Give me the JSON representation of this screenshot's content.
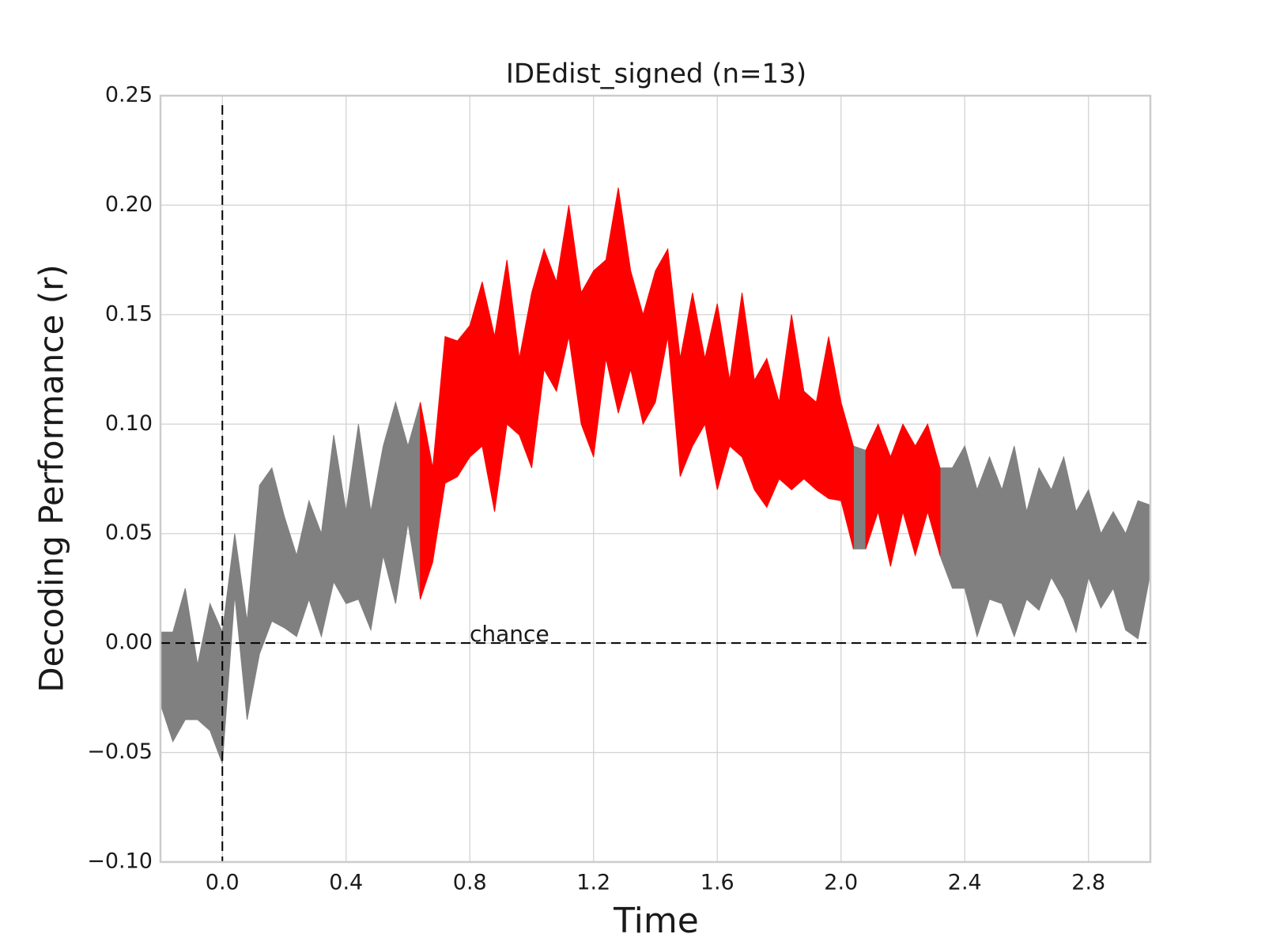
{
  "chart_data": {
    "type": "band",
    "title": "IDEdist_signed (n=13)",
    "xlabel": "Time",
    "ylabel": "Decoding Performance (r)",
    "annotation": "chance",
    "hlines": [
      0
    ],
    "vlines": [
      0
    ],
    "grid": true,
    "xlim": [
      -0.2,
      3.0
    ],
    "ylim": [
      -0.1,
      0.25
    ],
    "xticks": [
      {
        "value": 0,
        "label": "0.0"
      },
      0.4,
      0.8,
      1.2,
      1.6,
      {
        "value": 2,
        "label": "2.0"
      },
      2.4,
      2.8
    ],
    "yticks": [
      {
        "value": -0.1,
        "label": "−0.10"
      },
      {
        "value": -0.05,
        "label": "−0.05"
      },
      {
        "value": 0,
        "label": "0.00"
      },
      0.05,
      {
        "value": 0.1,
        "label": "0.10"
      },
      0.15,
      {
        "value": 0.2,
        "label": "0.20"
      },
      0.25
    ],
    "x": [
      -0.2,
      -0.16,
      -0.12,
      -0.08,
      -0.04,
      0,
      0.04,
      0.08,
      0.12,
      0.16,
      0.2,
      0.24,
      0.28,
      0.32,
      0.36,
      0.4,
      0.44,
      0.48,
      0.52,
      0.56,
      0.6,
      0.64,
      0.68,
      0.72,
      0.76,
      0.8,
      0.84,
      0.88,
      0.92,
      0.96,
      1,
      1.04,
      1.08,
      1.12,
      1.16,
      1.2,
      1.24,
      1.28,
      1.32,
      1.36,
      1.4,
      1.44,
      1.48,
      1.52,
      1.56,
      1.6,
      1.64,
      1.68,
      1.72,
      1.76,
      1.8,
      1.84,
      1.88,
      1.92,
      1.96,
      2,
      2.04,
      2.08,
      2.12,
      2.16,
      2.2,
      2.24,
      2.28,
      2.32,
      2.36,
      2.4,
      2.44,
      2.48,
      2.52,
      2.56,
      2.6,
      2.64,
      2.68,
      2.72,
      2.76,
      2.8,
      2.84,
      2.88,
      2.92,
      2.96,
      3
    ],
    "series": [
      {
        "color": "#808080",
        "upper": [
          0.005,
          0.005,
          0.025,
          -0.01,
          0.018,
          0.005,
          0.05,
          0.01,
          0.072,
          0.08,
          0.058,
          0.04,
          0.065,
          0.05,
          0.095,
          0.06,
          0.1,
          0.06,
          0.09,
          0.11,
          0.09,
          0.11,
          null,
          null,
          null,
          null,
          null,
          null,
          null,
          null,
          null,
          null,
          null,
          null,
          null,
          null,
          null,
          null,
          null,
          null,
          null,
          null,
          null,
          null,
          null,
          null,
          null,
          null,
          null,
          null,
          null,
          null,
          null,
          null,
          null,
          null,
          0.09,
          0.088,
          null,
          null,
          null,
          null,
          null,
          0.08,
          0.08,
          0.09,
          0.07,
          0.085,
          0.07,
          0.09,
          0.06,
          0.08,
          0.07,
          0.085,
          0.06,
          0.07,
          0.05,
          0.06,
          0.05,
          0.065,
          0.063
        ],
        "lower": [
          -0.028,
          -0.045,
          -0.035,
          -0.035,
          -0.04,
          -0.055,
          0.022,
          -0.035,
          -0.005,
          0.01,
          0.007,
          0.003,
          0.02,
          0.003,
          0.028,
          0.018,
          0.02,
          0.006,
          0.04,
          0.018,
          0.055,
          0.02,
          null,
          null,
          null,
          null,
          null,
          null,
          null,
          null,
          null,
          null,
          null,
          null,
          null,
          null,
          null,
          null,
          null,
          null,
          null,
          null,
          null,
          null,
          null,
          null,
          null,
          null,
          null,
          null,
          null,
          null,
          null,
          null,
          null,
          null,
          0.043,
          0.043,
          null,
          null,
          null,
          null,
          null,
          0.04,
          0.025,
          0.025,
          0.003,
          0.02,
          0.018,
          0.003,
          0.02,
          0.015,
          0.03,
          0.02,
          0.005,
          0.03,
          0.016,
          0.025,
          0.006,
          0.002,
          0.032
        ]
      },
      {
        "color": "#ff0000",
        "upper": [
          null,
          null,
          null,
          null,
          null,
          null,
          null,
          null,
          null,
          null,
          null,
          null,
          null,
          null,
          null,
          null,
          null,
          null,
          null,
          null,
          null,
          0.11,
          0.08,
          0.14,
          0.138,
          0.145,
          0.165,
          0.14,
          0.175,
          0.13,
          0.16,
          0.18,
          0.165,
          0.2,
          0.16,
          0.17,
          0.175,
          0.208,
          0.17,
          0.15,
          0.17,
          0.18,
          0.13,
          0.16,
          0.13,
          0.155,
          0.12,
          0.16,
          0.12,
          0.13,
          0.11,
          0.15,
          0.115,
          0.11,
          0.14,
          0.11,
          0.09,
          null,
          null,
          null,
          null,
          null,
          null,
          null,
          null,
          null,
          null,
          null,
          null,
          null,
          null,
          null,
          null,
          null,
          null,
          null,
          null,
          null,
          null,
          null,
          null
        ],
        "lower": [
          null,
          null,
          null,
          null,
          null,
          null,
          null,
          null,
          null,
          null,
          null,
          null,
          null,
          null,
          null,
          null,
          null,
          null,
          null,
          null,
          null,
          0.02,
          0.037,
          0.073,
          0.076,
          0.085,
          0.09,
          0.06,
          0.1,
          0.095,
          0.08,
          0.125,
          0.115,
          0.14,
          0.1,
          0.085,
          0.13,
          0.105,
          0.125,
          0.1,
          0.11,
          0.14,
          0.076,
          0.09,
          0.1,
          0.07,
          0.09,
          0.085,
          0.07,
          0.062,
          0.075,
          0.07,
          0.075,
          0.07,
          0.066,
          0.065,
          0.043,
          null,
          null,
          null,
          null,
          null,
          null,
          null,
          null,
          null,
          null,
          null,
          null,
          null,
          null,
          null,
          null,
          null,
          null,
          null,
          null,
          null,
          null,
          null,
          null
        ]
      },
      {
        "color": "#ff0000",
        "upper": [
          null,
          null,
          null,
          null,
          null,
          null,
          null,
          null,
          null,
          null,
          null,
          null,
          null,
          null,
          null,
          null,
          null,
          null,
          null,
          null,
          null,
          null,
          null,
          null,
          null,
          null,
          null,
          null,
          null,
          null,
          null,
          null,
          null,
          null,
          null,
          null,
          null,
          null,
          null,
          null,
          null,
          null,
          null,
          null,
          null,
          null,
          null,
          null,
          null,
          null,
          null,
          null,
          null,
          null,
          null,
          null,
          null,
          0.088,
          0.1,
          0.085,
          0.1,
          0.09,
          0.1,
          0.08,
          null,
          null,
          null,
          null,
          null,
          null,
          null,
          null,
          null,
          null,
          null,
          null,
          null,
          null,
          null,
          null,
          null
        ],
        "lower": [
          null,
          null,
          null,
          null,
          null,
          null,
          null,
          null,
          null,
          null,
          null,
          null,
          null,
          null,
          null,
          null,
          null,
          null,
          null,
          null,
          null,
          null,
          null,
          null,
          null,
          null,
          null,
          null,
          null,
          null,
          null,
          null,
          null,
          null,
          null,
          null,
          null,
          null,
          null,
          null,
          null,
          null,
          null,
          null,
          null,
          null,
          null,
          null,
          null,
          null,
          null,
          null,
          null,
          null,
          null,
          null,
          null,
          0.043,
          0.06,
          0.035,
          0.06,
          0.04,
          0.06,
          0.04,
          null,
          null,
          null,
          null,
          null,
          null,
          null,
          null,
          null,
          null,
          null,
          null,
          null,
          null,
          null,
          null,
          null
        ]
      }
    ]
  }
}
